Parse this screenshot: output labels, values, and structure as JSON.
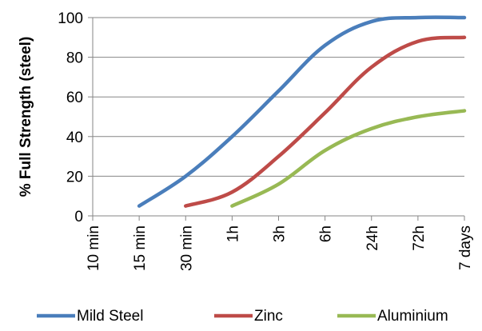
{
  "chart_data": {
    "type": "line",
    "title": "",
    "xlabel": "",
    "ylabel": "% Full Strength (steel)",
    "categories": [
      "10 min",
      "15 min",
      "30 min",
      "1h",
      "3h",
      "6h",
      "24h",
      "72h",
      "7 days"
    ],
    "ylim": [
      0,
      100
    ],
    "yticks": [
      0,
      20,
      40,
      60,
      80,
      100
    ],
    "grid": true,
    "legend": "bottom",
    "series": [
      {
        "name": "Mild Steel",
        "color": "#4a7ebb",
        "points": [
          [
            1,
            5
          ],
          [
            2,
            20
          ],
          [
            3,
            40
          ],
          [
            4,
            63
          ],
          [
            5,
            86
          ],
          [
            6,
            98
          ],
          [
            7,
            100
          ],
          [
            8,
            100
          ]
        ]
      },
      {
        "name": "Zinc",
        "color": "#be4b48",
        "points": [
          [
            2,
            5
          ],
          [
            3,
            12
          ],
          [
            4,
            30
          ],
          [
            5,
            52
          ],
          [
            6,
            75
          ],
          [
            7,
            88
          ],
          [
            8,
            90
          ]
        ]
      },
      {
        "name": "Aluminium",
        "color": "#98b954",
        "points": [
          [
            3,
            5
          ],
          [
            4,
            16
          ],
          [
            5,
            33
          ],
          [
            6,
            44
          ],
          [
            7,
            50
          ],
          [
            8,
            53
          ]
        ]
      }
    ]
  }
}
